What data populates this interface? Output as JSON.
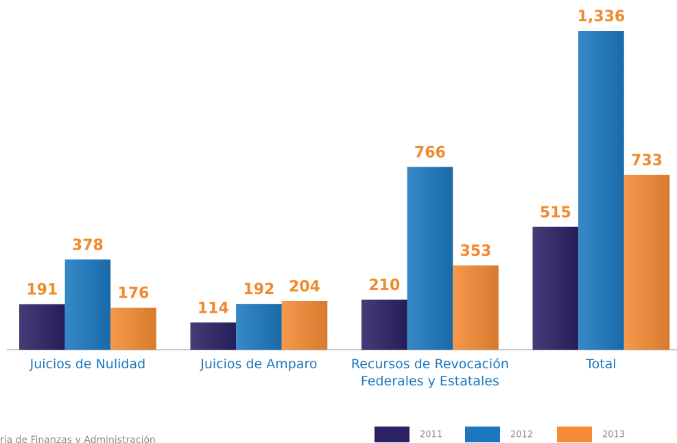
{
  "chart_data": {
    "type": "bar",
    "categories": [
      "Juicios de Nulidad",
      "Juicios de Amparo",
      "Recursos de Revocación Federales y Estatales",
      "Total"
    ],
    "series": [
      {
        "name": "2011",
        "color": "#2a2264",
        "values": [
          191,
          114,
          210,
          515
        ]
      },
      {
        "name": "2012",
        "color": "#1b78c0",
        "values": [
          378,
          192,
          766,
          1336
        ],
        "value_labels": [
          "378",
          "192",
          "766",
          "1,336"
        ]
      },
      {
        "name": "2013",
        "color": "#f58b35",
        "values": [
          176,
          204,
          353,
          733
        ]
      }
    ],
    "source": "ría de Finanzas y Administración"
  }
}
